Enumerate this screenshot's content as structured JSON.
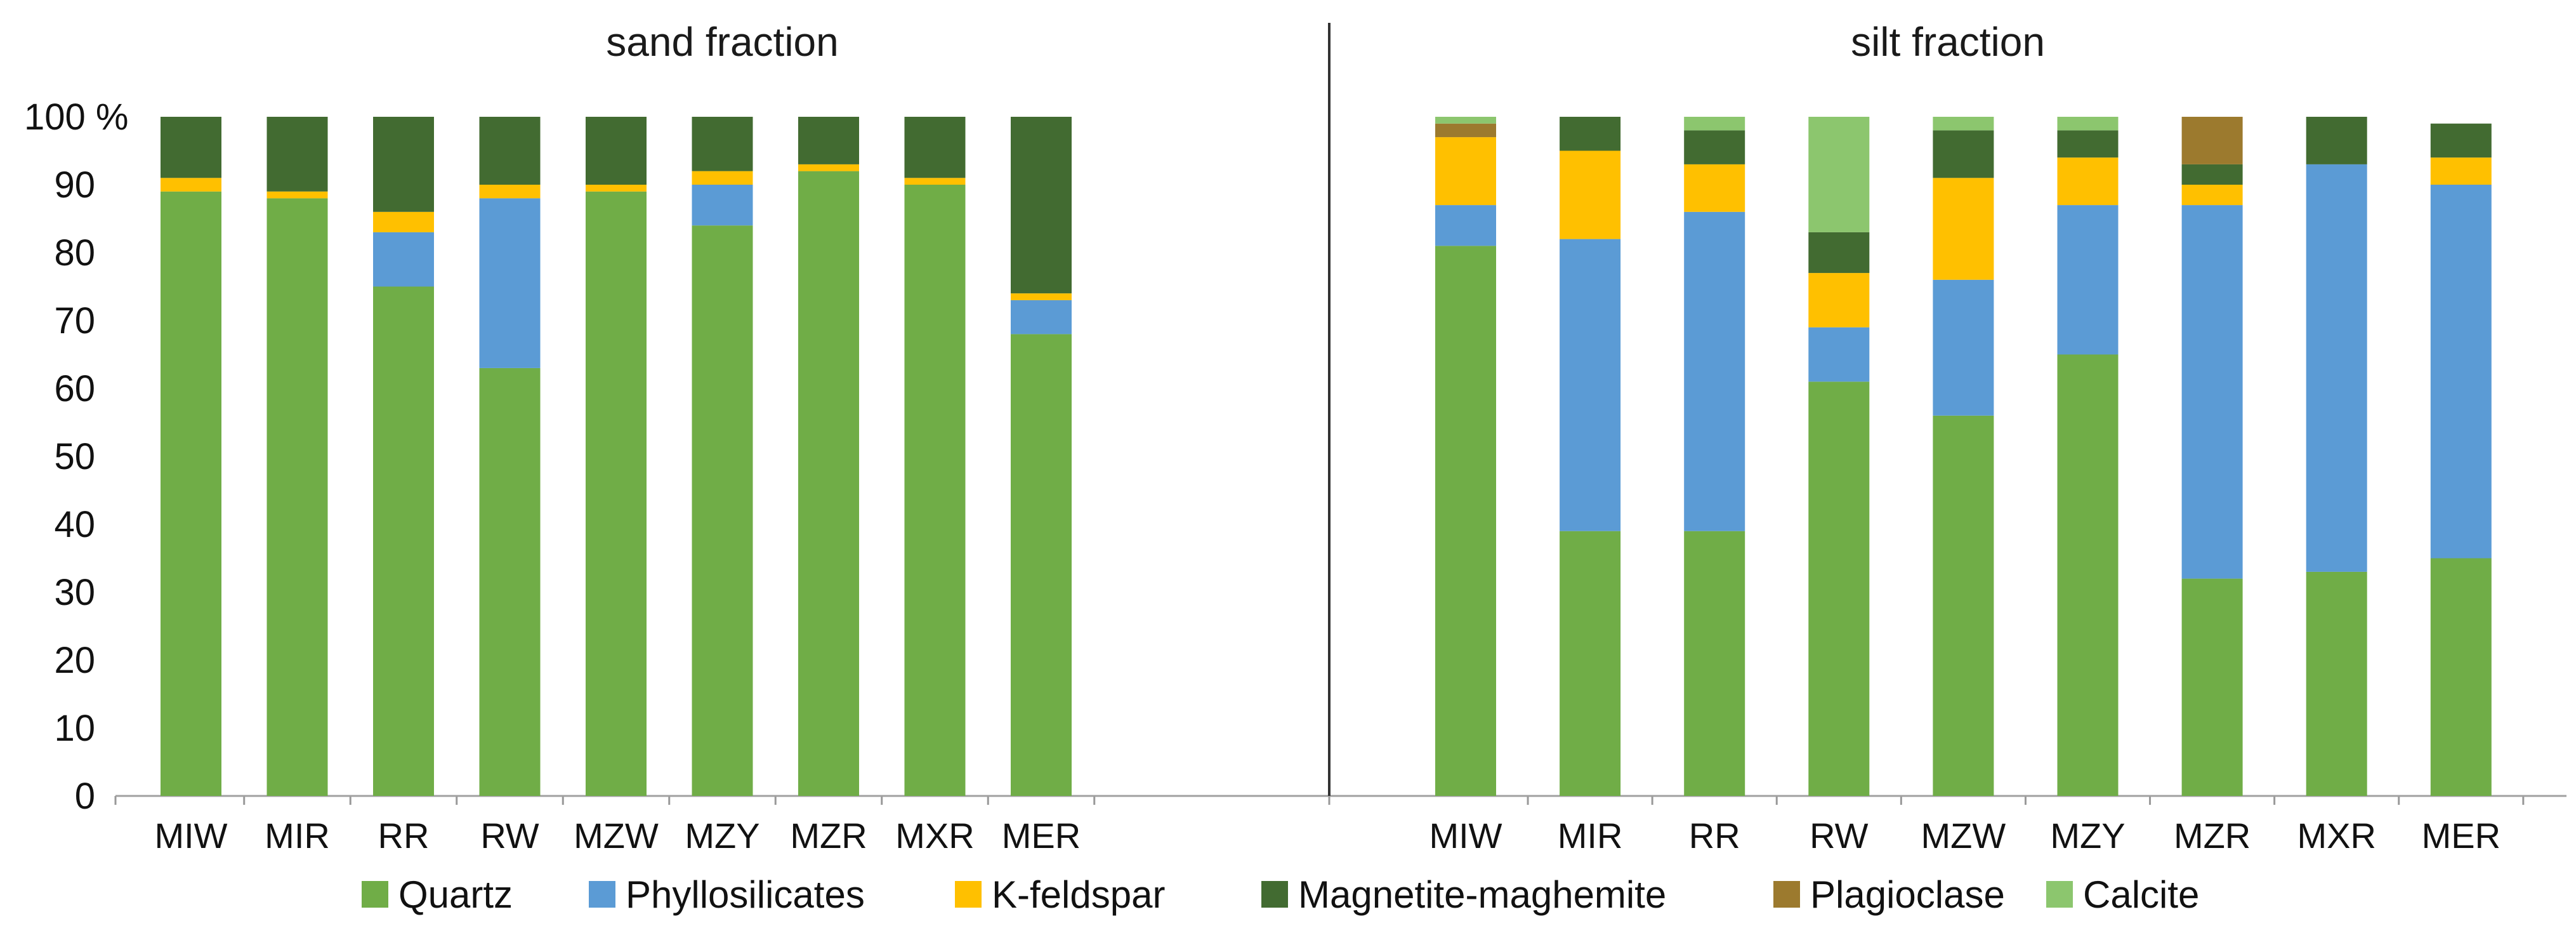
{
  "chart_data": {
    "type": "bar",
    "stacked": true,
    "y_unit_label": "100 %",
    "ylim": [
      0,
      100
    ],
    "yticks": [
      0,
      10,
      20,
      30,
      40,
      50,
      60,
      70,
      80,
      90
    ],
    "legend": {
      "placement": "bottom",
      "entries": [
        {
          "name": "Quartz",
          "color": "#70AD47"
        },
        {
          "name": "Phyllosilicates",
          "color": "#5B9BD5"
        },
        {
          "name": "K-feldspar",
          "color": "#FFC000"
        },
        {
          "name": "Magnetite-maghemite",
          "color": "#426B31"
        },
        {
          "name": "Plagioclase",
          "color": "#9C7A2E"
        },
        {
          "name": "Calcite",
          "color": "#8CC66E"
        }
      ]
    },
    "panels": [
      {
        "title": "sand fraction",
        "categories": [
          "MIW",
          "MIR",
          "RR",
          "RW",
          "MZW",
          "MZY",
          "MZR",
          "MXR",
          "MER"
        ],
        "series": [
          {
            "name": "Quartz",
            "values": [
              89,
              88,
              75,
              63,
              89,
              84,
              92,
              90,
              68
            ]
          },
          {
            "name": "Phyllosilicates",
            "values": [
              0,
              0,
              8,
              25,
              0,
              6,
              0,
              0,
              5
            ]
          },
          {
            "name": "K-feldspar",
            "values": [
              2,
              1,
              3,
              2,
              1,
              2,
              1,
              1,
              1
            ]
          },
          {
            "name": "Magnetite-maghemite",
            "values": [
              9,
              11,
              14,
              10,
              10,
              8,
              7,
              9,
              26
            ]
          },
          {
            "name": "Plagioclase",
            "values": [
              0,
              0,
              0,
              0,
              0,
              0,
              0,
              0,
              0
            ]
          },
          {
            "name": "Calcite",
            "values": [
              0,
              0,
              0,
              0,
              0,
              0,
              0,
              0,
              0
            ]
          }
        ]
      },
      {
        "title": "silt fraction",
        "categories": [
          "MIW",
          "MIR",
          "RR",
          "RW",
          "MZW",
          "MZY",
          "MZR",
          "MXR",
          "MER"
        ],
        "series": [
          {
            "name": "Quartz",
            "values": [
              81,
              39,
              39,
              61,
              56,
              65,
              32,
              33,
              35
            ]
          },
          {
            "name": "Phyllosilicates",
            "values": [
              6,
              43,
              47,
              8,
              20,
              22,
              55,
              60,
              55
            ]
          },
          {
            "name": "K-feldspar",
            "values": [
              10,
              13,
              7,
              8,
              15,
              7,
              3,
              0,
              4
            ]
          },
          {
            "name": "Magnetite-maghemite",
            "values": [
              0,
              5,
              5,
              6,
              7,
              4,
              3,
              7,
              5
            ]
          },
          {
            "name": "Plagioclase",
            "values": [
              2,
              0,
              0,
              0,
              0,
              0,
              7,
              0,
              0
            ]
          },
          {
            "name": "Calcite",
            "values": [
              1,
              0,
              2,
              17,
              2,
              2,
              0,
              0,
              0
            ]
          }
        ]
      }
    ]
  }
}
